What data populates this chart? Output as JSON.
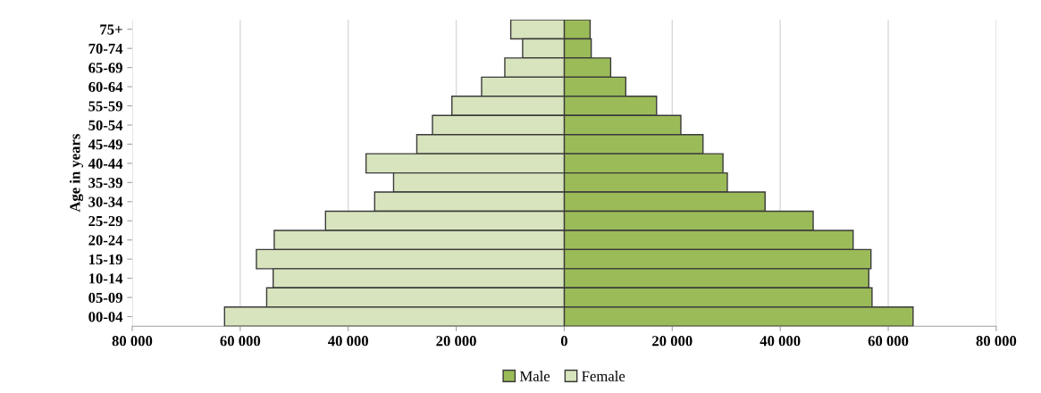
{
  "chart_data": {
    "type": "bar",
    "orientation": "horizontal",
    "ylabel": "Age in years",
    "categories": [
      "75+",
      "70-74",
      "65-69",
      "60-64",
      "55-59",
      "50-54",
      "45-49",
      "40-44",
      "35-39",
      "30-34",
      "25-29",
      "20-24",
      "15-19",
      "10-14",
      "05-09",
      "00-04"
    ],
    "series": [
      {
        "name": "Male",
        "color": "#9bbb59",
        "values": [
          4800,
          5000,
          8600,
          11400,
          17100,
          21600,
          25700,
          29400,
          30200,
          37200,
          46100,
          53500,
          56800,
          56400,
          57000,
          64600
        ]
      },
      {
        "name": "Female",
        "color": "#d7e4bd",
        "values": [
          -9900,
          -7700,
          -11000,
          -15300,
          -20800,
          -24400,
          -27300,
          -36700,
          -31600,
          -35100,
          -44200,
          -53700,
          -57000,
          -53900,
          -55100,
          -62900
        ]
      }
    ],
    "xlim": [
      -80000,
      80000
    ],
    "xticks": [
      {
        "value": -80000,
        "label": "80 000"
      },
      {
        "value": -60000,
        "label": "60 000"
      },
      {
        "value": -40000,
        "label": "40 000"
      },
      {
        "value": -20000,
        "label": "20 000"
      },
      0,
      {
        "value": 20000,
        "label": "20 000"
      },
      {
        "value": 40000,
        "label": "40 000"
      },
      {
        "value": 60000,
        "label": "60 000"
      },
      {
        "value": 80000,
        "label": "80 000"
      }
    ],
    "grid": "x",
    "legend": "bottom",
    "stacked": true
  }
}
